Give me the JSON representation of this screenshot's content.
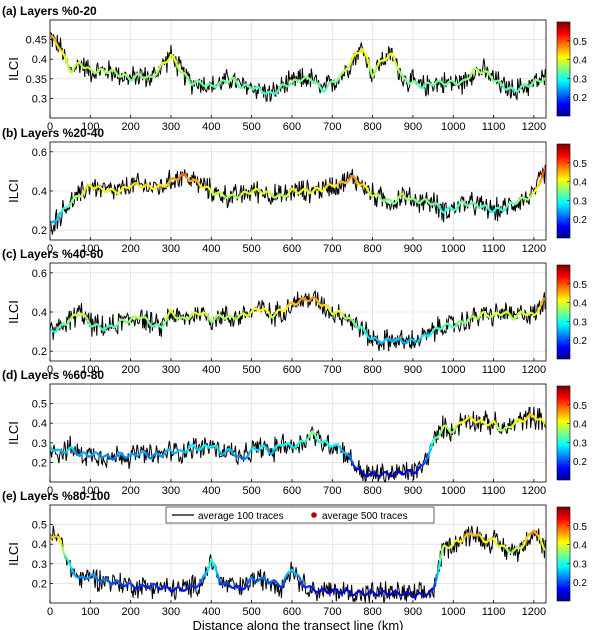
{
  "chart_data": [
    {
      "type": "line",
      "title": "(a) Layers %0-20",
      "ylabel": "ILCI",
      "xlim": [
        0,
        1230
      ],
      "ylim": [
        0.25,
        0.5
      ],
      "yticks": [
        0.3,
        0.35,
        0.4,
        0.45
      ],
      "xticks": [
        0,
        100,
        200,
        300,
        400,
        500,
        600,
        700,
        800,
        900,
        1000,
        1100,
        1200
      ],
      "colorbar": {
        "ticks": [
          0.2,
          0.3,
          0.4,
          0.5
        ],
        "range": [
          0.1,
          0.6
        ]
      },
      "series": [
        {
          "x": [
            0,
            25,
            50,
            75,
            100,
            125,
            150,
            175,
            200,
            225,
            250,
            275,
            300,
            325,
            350,
            375,
            400,
            425,
            450,
            475,
            500,
            525,
            550,
            575,
            600,
            625,
            650,
            675,
            700,
            725,
            750,
            775,
            800,
            825,
            850,
            875,
            900,
            925,
            950,
            975,
            1000,
            1025,
            1050,
            1075,
            1100,
            1125,
            1150,
            1175,
            1200,
            1225
          ],
          "y": [
            0.46,
            0.43,
            0.37,
            0.39,
            0.37,
            0.37,
            0.37,
            0.36,
            0.35,
            0.36,
            0.35,
            0.38,
            0.41,
            0.37,
            0.34,
            0.34,
            0.33,
            0.34,
            0.35,
            0.33,
            0.33,
            0.32,
            0.31,
            0.33,
            0.34,
            0.35,
            0.35,
            0.32,
            0.34,
            0.36,
            0.4,
            0.43,
            0.36,
            0.4,
            0.41,
            0.35,
            0.34,
            0.33,
            0.34,
            0.34,
            0.34,
            0.34,
            0.37,
            0.37,
            0.35,
            0.33,
            0.32,
            0.33,
            0.34,
            0.35
          ]
        }
      ]
    },
    {
      "type": "line",
      "title": "(b) Layers %20-40",
      "ylabel": "ILCI",
      "xlim": [
        0,
        1230
      ],
      "ylim": [
        0.15,
        0.65
      ],
      "yticks": [
        0.2,
        0.4,
        0.6
      ],
      "xticks": [
        0,
        100,
        200,
        300,
        400,
        500,
        600,
        700,
        800,
        900,
        1000,
        1100,
        1200
      ],
      "colorbar": {
        "ticks": [
          0.2,
          0.3,
          0.4,
          0.5
        ],
        "range": [
          0.1,
          0.6
        ]
      },
      "series": [
        {
          "x": [
            0,
            25,
            50,
            75,
            100,
            125,
            150,
            175,
            200,
            225,
            250,
            275,
            300,
            325,
            350,
            375,
            400,
            425,
            450,
            475,
            500,
            525,
            550,
            575,
            600,
            625,
            650,
            675,
            700,
            725,
            750,
            775,
            800,
            825,
            850,
            875,
            900,
            925,
            950,
            975,
            1000,
            1025,
            1050,
            1075,
            1100,
            1125,
            1150,
            1175,
            1200,
            1225
          ],
          "y": [
            0.22,
            0.28,
            0.34,
            0.38,
            0.43,
            0.41,
            0.4,
            0.4,
            0.43,
            0.43,
            0.42,
            0.42,
            0.45,
            0.48,
            0.46,
            0.43,
            0.4,
            0.38,
            0.37,
            0.38,
            0.4,
            0.4,
            0.38,
            0.37,
            0.4,
            0.4,
            0.4,
            0.41,
            0.43,
            0.44,
            0.47,
            0.43,
            0.38,
            0.36,
            0.34,
            0.38,
            0.35,
            0.35,
            0.34,
            0.3,
            0.31,
            0.34,
            0.33,
            0.32,
            0.3,
            0.31,
            0.34,
            0.36,
            0.38,
            0.5
          ]
        }
      ]
    },
    {
      "type": "line",
      "title": "(c) Layers %40-60",
      "ylabel": "ILCI",
      "xlim": [
        0,
        1230
      ],
      "ylim": [
        0.15,
        0.65
      ],
      "yticks": [
        0.2,
        0.4,
        0.6
      ],
      "xticks": [
        0,
        100,
        200,
        300,
        400,
        500,
        600,
        700,
        800,
        900,
        1000,
        1100,
        1200
      ],
      "colorbar": {
        "ticks": [
          0.2,
          0.3,
          0.4,
          0.5
        ],
        "range": [
          0.1,
          0.6
        ]
      },
      "series": [
        {
          "x": [
            0,
            25,
            50,
            75,
            100,
            125,
            150,
            175,
            200,
            225,
            250,
            275,
            300,
            325,
            350,
            375,
            400,
            425,
            450,
            475,
            500,
            525,
            550,
            575,
            600,
            625,
            650,
            675,
            700,
            725,
            750,
            775,
            800,
            825,
            850,
            875,
            900,
            925,
            950,
            975,
            1000,
            1025,
            1050,
            1075,
            1100,
            1125,
            1150,
            1175,
            1200,
            1225
          ],
          "y": [
            0.3,
            0.32,
            0.36,
            0.4,
            0.34,
            0.32,
            0.32,
            0.35,
            0.36,
            0.38,
            0.34,
            0.32,
            0.4,
            0.36,
            0.38,
            0.4,
            0.36,
            0.38,
            0.37,
            0.38,
            0.4,
            0.42,
            0.38,
            0.41,
            0.44,
            0.46,
            0.47,
            0.44,
            0.4,
            0.39,
            0.35,
            0.31,
            0.26,
            0.25,
            0.26,
            0.25,
            0.25,
            0.27,
            0.3,
            0.33,
            0.33,
            0.35,
            0.37,
            0.39,
            0.38,
            0.4,
            0.37,
            0.4,
            0.38,
            0.46
          ]
        }
      ]
    },
    {
      "type": "line",
      "title": "(d) Layers %60-80",
      "ylabel": "ILCI",
      "xlim": [
        0,
        1230
      ],
      "ylim": [
        0.1,
        0.6
      ],
      "yticks": [
        0.2,
        0.3,
        0.4,
        0.5
      ],
      "xticks": [
        0,
        100,
        200,
        300,
        400,
        500,
        600,
        700,
        800,
        900,
        1000,
        1100,
        1200
      ],
      "colorbar": {
        "ticks": [
          0.2,
          0.3,
          0.4,
          0.5
        ],
        "range": [
          0.1,
          0.6
        ]
      },
      "series": [
        {
          "x": [
            0,
            25,
            50,
            75,
            100,
            125,
            150,
            175,
            200,
            225,
            250,
            275,
            300,
            325,
            350,
            375,
            400,
            425,
            450,
            475,
            500,
            525,
            550,
            575,
            600,
            625,
            650,
            675,
            700,
            725,
            750,
            775,
            800,
            825,
            850,
            875,
            900,
            925,
            950,
            975,
            1000,
            1025,
            1050,
            1075,
            1100,
            1125,
            1150,
            1175,
            1200,
            1225
          ],
          "y": [
            0.28,
            0.25,
            0.27,
            0.24,
            0.24,
            0.24,
            0.22,
            0.24,
            0.23,
            0.25,
            0.23,
            0.24,
            0.26,
            0.25,
            0.28,
            0.27,
            0.29,
            0.25,
            0.26,
            0.21,
            0.26,
            0.28,
            0.25,
            0.3,
            0.28,
            0.3,
            0.35,
            0.3,
            0.29,
            0.27,
            0.2,
            0.14,
            0.14,
            0.14,
            0.14,
            0.15,
            0.15,
            0.18,
            0.3,
            0.38,
            0.36,
            0.42,
            0.42,
            0.4,
            0.4,
            0.36,
            0.4,
            0.42,
            0.44,
            0.4
          ]
        }
      ]
    },
    {
      "type": "line",
      "title": "(e) Layers %80-100",
      "ylabel": "ILCI",
      "xlabel": "Distance along the transect line (km)",
      "xlim": [
        0,
        1230
      ],
      "ylim": [
        0.1,
        0.6
      ],
      "yticks": [
        0.2,
        0.3,
        0.4,
        0.5
      ],
      "xticks": [
        0,
        100,
        200,
        300,
        400,
        500,
        600,
        700,
        800,
        900,
        1000,
        1100,
        1200
      ],
      "colorbar": {
        "ticks": [
          0.2,
          0.3,
          0.4,
          0.5
        ],
        "range": [
          0.1,
          0.6
        ]
      },
      "legend": {
        "placement": "top-center",
        "entries": [
          "average 100 traces",
          "average 500 traces"
        ]
      },
      "series": [
        {
          "x": [
            0,
            25,
            50,
            75,
            100,
            125,
            150,
            175,
            200,
            225,
            250,
            275,
            300,
            325,
            350,
            375,
            400,
            425,
            450,
            475,
            500,
            525,
            550,
            575,
            600,
            625,
            650,
            675,
            700,
            725,
            750,
            775,
            800,
            825,
            850,
            875,
            900,
            925,
            950,
            975,
            1000,
            1025,
            1050,
            1075,
            1100,
            1125,
            1150,
            1175,
            1200,
            1225
          ],
          "y": [
            0.45,
            0.42,
            0.28,
            0.22,
            0.24,
            0.22,
            0.21,
            0.2,
            0.19,
            0.18,
            0.19,
            0.18,
            0.17,
            0.17,
            0.18,
            0.2,
            0.32,
            0.2,
            0.19,
            0.17,
            0.22,
            0.22,
            0.21,
            0.19,
            0.28,
            0.2,
            0.17,
            0.16,
            0.16,
            0.16,
            0.15,
            0.15,
            0.15,
            0.15,
            0.15,
            0.15,
            0.14,
            0.14,
            0.16,
            0.38,
            0.4,
            0.43,
            0.46,
            0.42,
            0.42,
            0.38,
            0.36,
            0.4,
            0.48,
            0.38
          ]
        }
      ]
    }
  ]
}
